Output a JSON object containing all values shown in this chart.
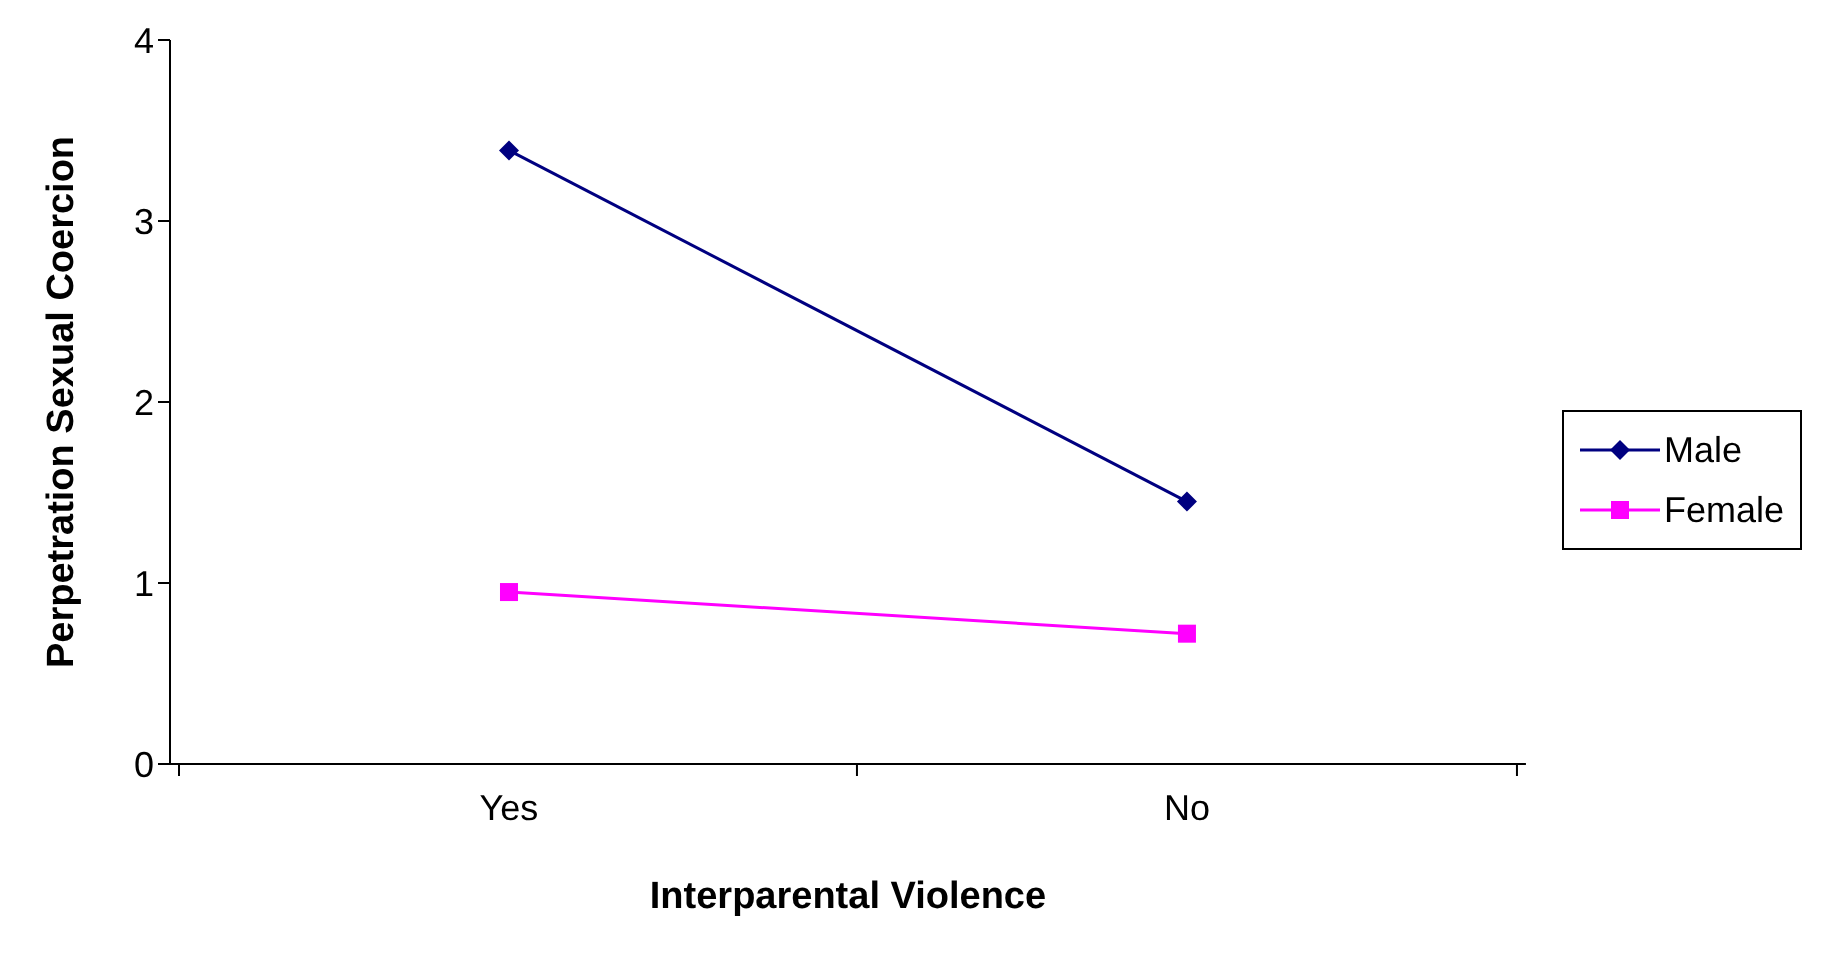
{
  "chart_data": {
    "type": "line",
    "xlabel": "Interparental Violence",
    "ylabel": "Perpetration Sexual Coercion",
    "categories": [
      "Yes",
      "No"
    ],
    "series": [
      {
        "name": "Male",
        "color": "#000080",
        "values": [
          3.39,
          1.45
        ],
        "marker": "diamond"
      },
      {
        "name": "Female",
        "color": "#ff00ff",
        "values": [
          0.95,
          0.72
        ],
        "marker": "square"
      }
    ],
    "ylim": [
      0,
      4
    ],
    "yticks": [
      0,
      1,
      2,
      3,
      4
    ],
    "grid": false,
    "legend": "right"
  }
}
